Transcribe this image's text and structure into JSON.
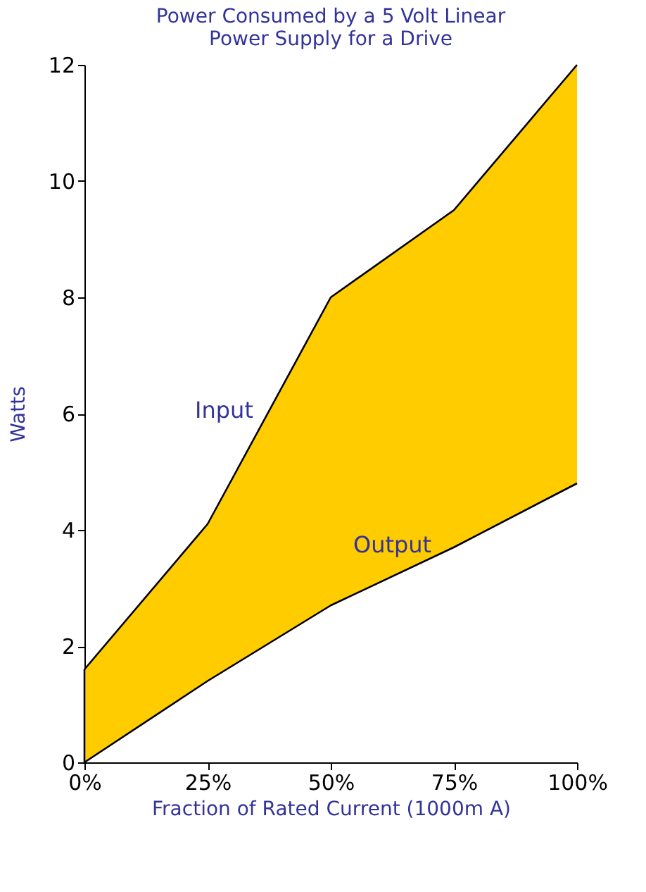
{
  "chart_data": {
    "type": "area",
    "title": [
      "Power Consumed by a 5 Volt Linear",
      "Power Supply for a Drive"
    ],
    "xlabel": "Fraction of Rated Current (1000m A)",
    "ylabel": "Watts",
    "x": [
      0,
      25,
      50,
      75,
      100
    ],
    "series": [
      {
        "name": "Input",
        "color": "#ffcc00",
        "values": [
          1.6,
          4.1,
          8.0,
          9.5,
          12.0
        ]
      },
      {
        "name": "Output",
        "type": "line",
        "color": "#000000",
        "values": [
          0.0,
          1.4,
          2.7,
          3.7,
          4.8
        ]
      }
    ],
    "xlim": [
      0,
      100
    ],
    "xticks": [
      {
        "value": 0,
        "label": "0%"
      },
      {
        "value": 25,
        "label": "25%"
      },
      {
        "value": 50,
        "label": "50%"
      },
      {
        "value": 75,
        "label": "75%"
      },
      {
        "value": 100,
        "label": "100%"
      }
    ],
    "ylim": [
      0,
      12
    ],
    "yticks": [
      0,
      2,
      4,
      6,
      8,
      10,
      12
    ],
    "grid": false
  }
}
